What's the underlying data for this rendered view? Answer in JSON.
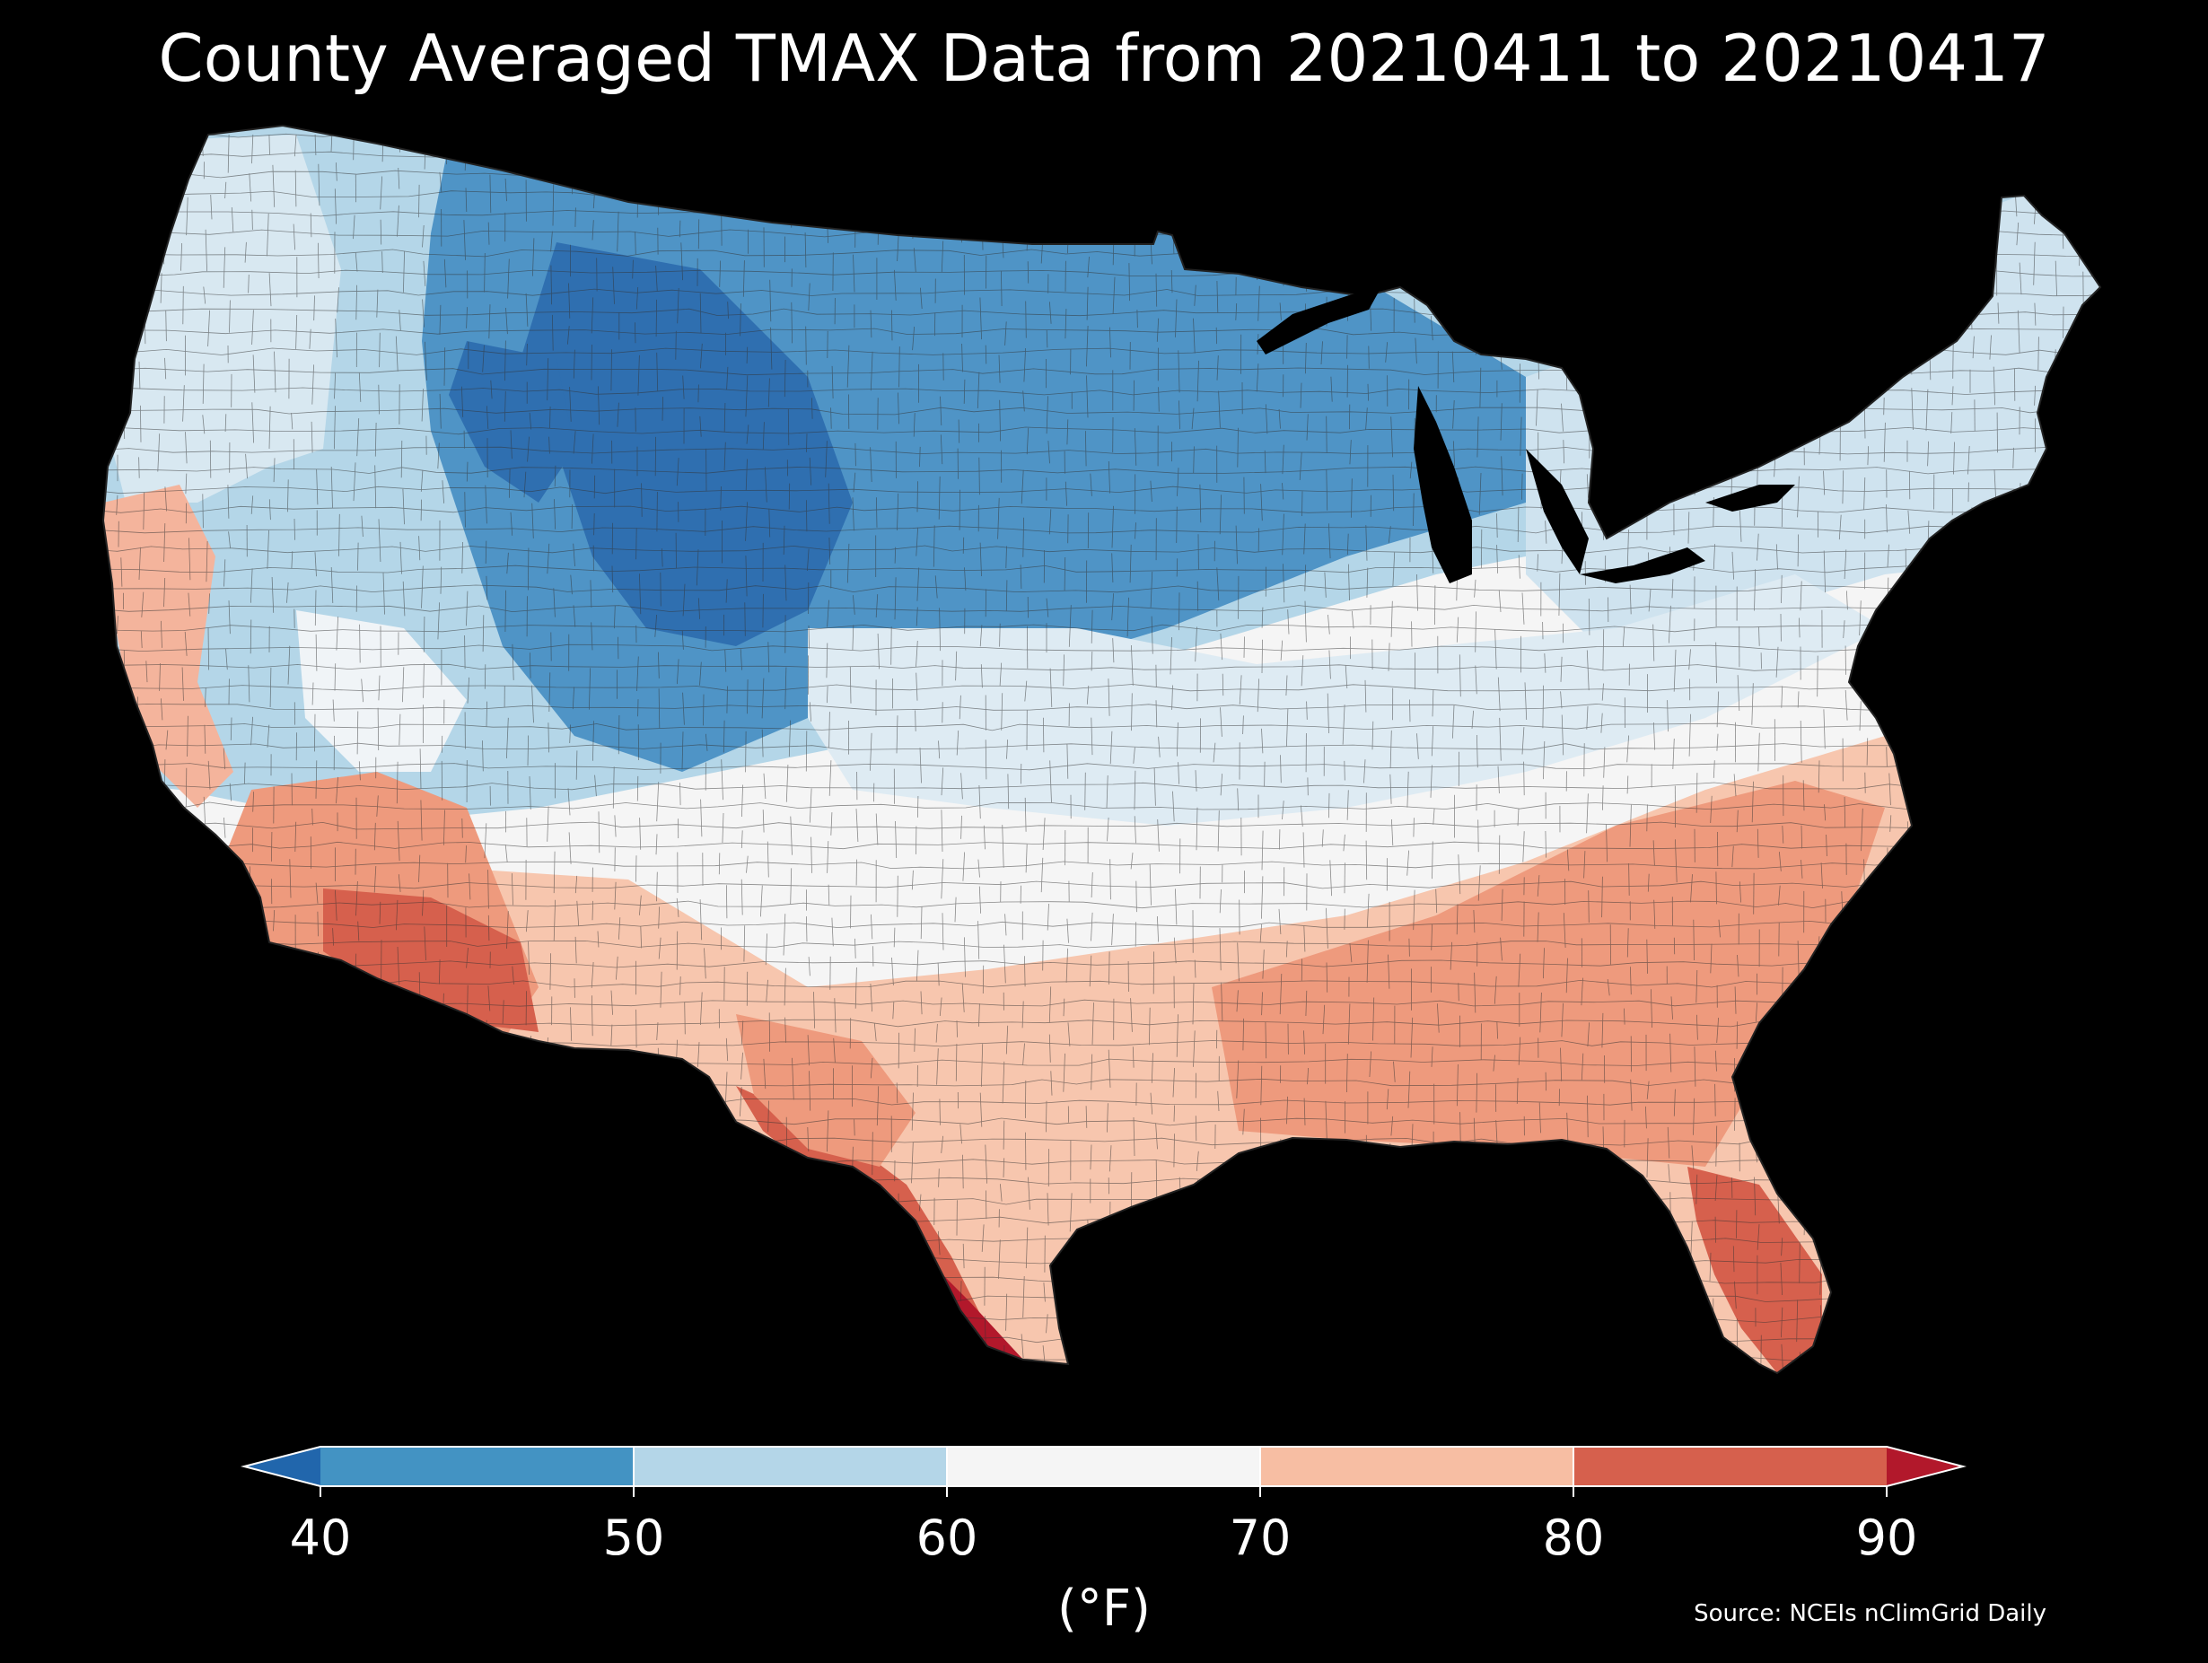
{
  "title": "County Averaged TMAX Data from 20210411 to 20210417",
  "source": "Source: NCEIs nClimGrid Daily",
  "legend": {
    "unit": "(°F)",
    "ticks": [
      "40",
      "50",
      "60",
      "70",
      "80",
      "90"
    ],
    "bins": [
      {
        "range": "<40",
        "color": "#2166ac"
      },
      {
        "range": "40-50",
        "color": "#4393c3"
      },
      {
        "range": "50-60",
        "color": "#b4d6e8"
      },
      {
        "range": "60-70",
        "color": "#f5f5f5"
      },
      {
        "range": "70-80",
        "color": "#f7bea3"
      },
      {
        "range": "80-90",
        "color": "#d6604d"
      },
      {
        "range": ">90",
        "color": "#b2182b"
      }
    ]
  },
  "map": {
    "region": "Contiguous United States",
    "measure": "TMAX",
    "background": "#000000"
  }
}
